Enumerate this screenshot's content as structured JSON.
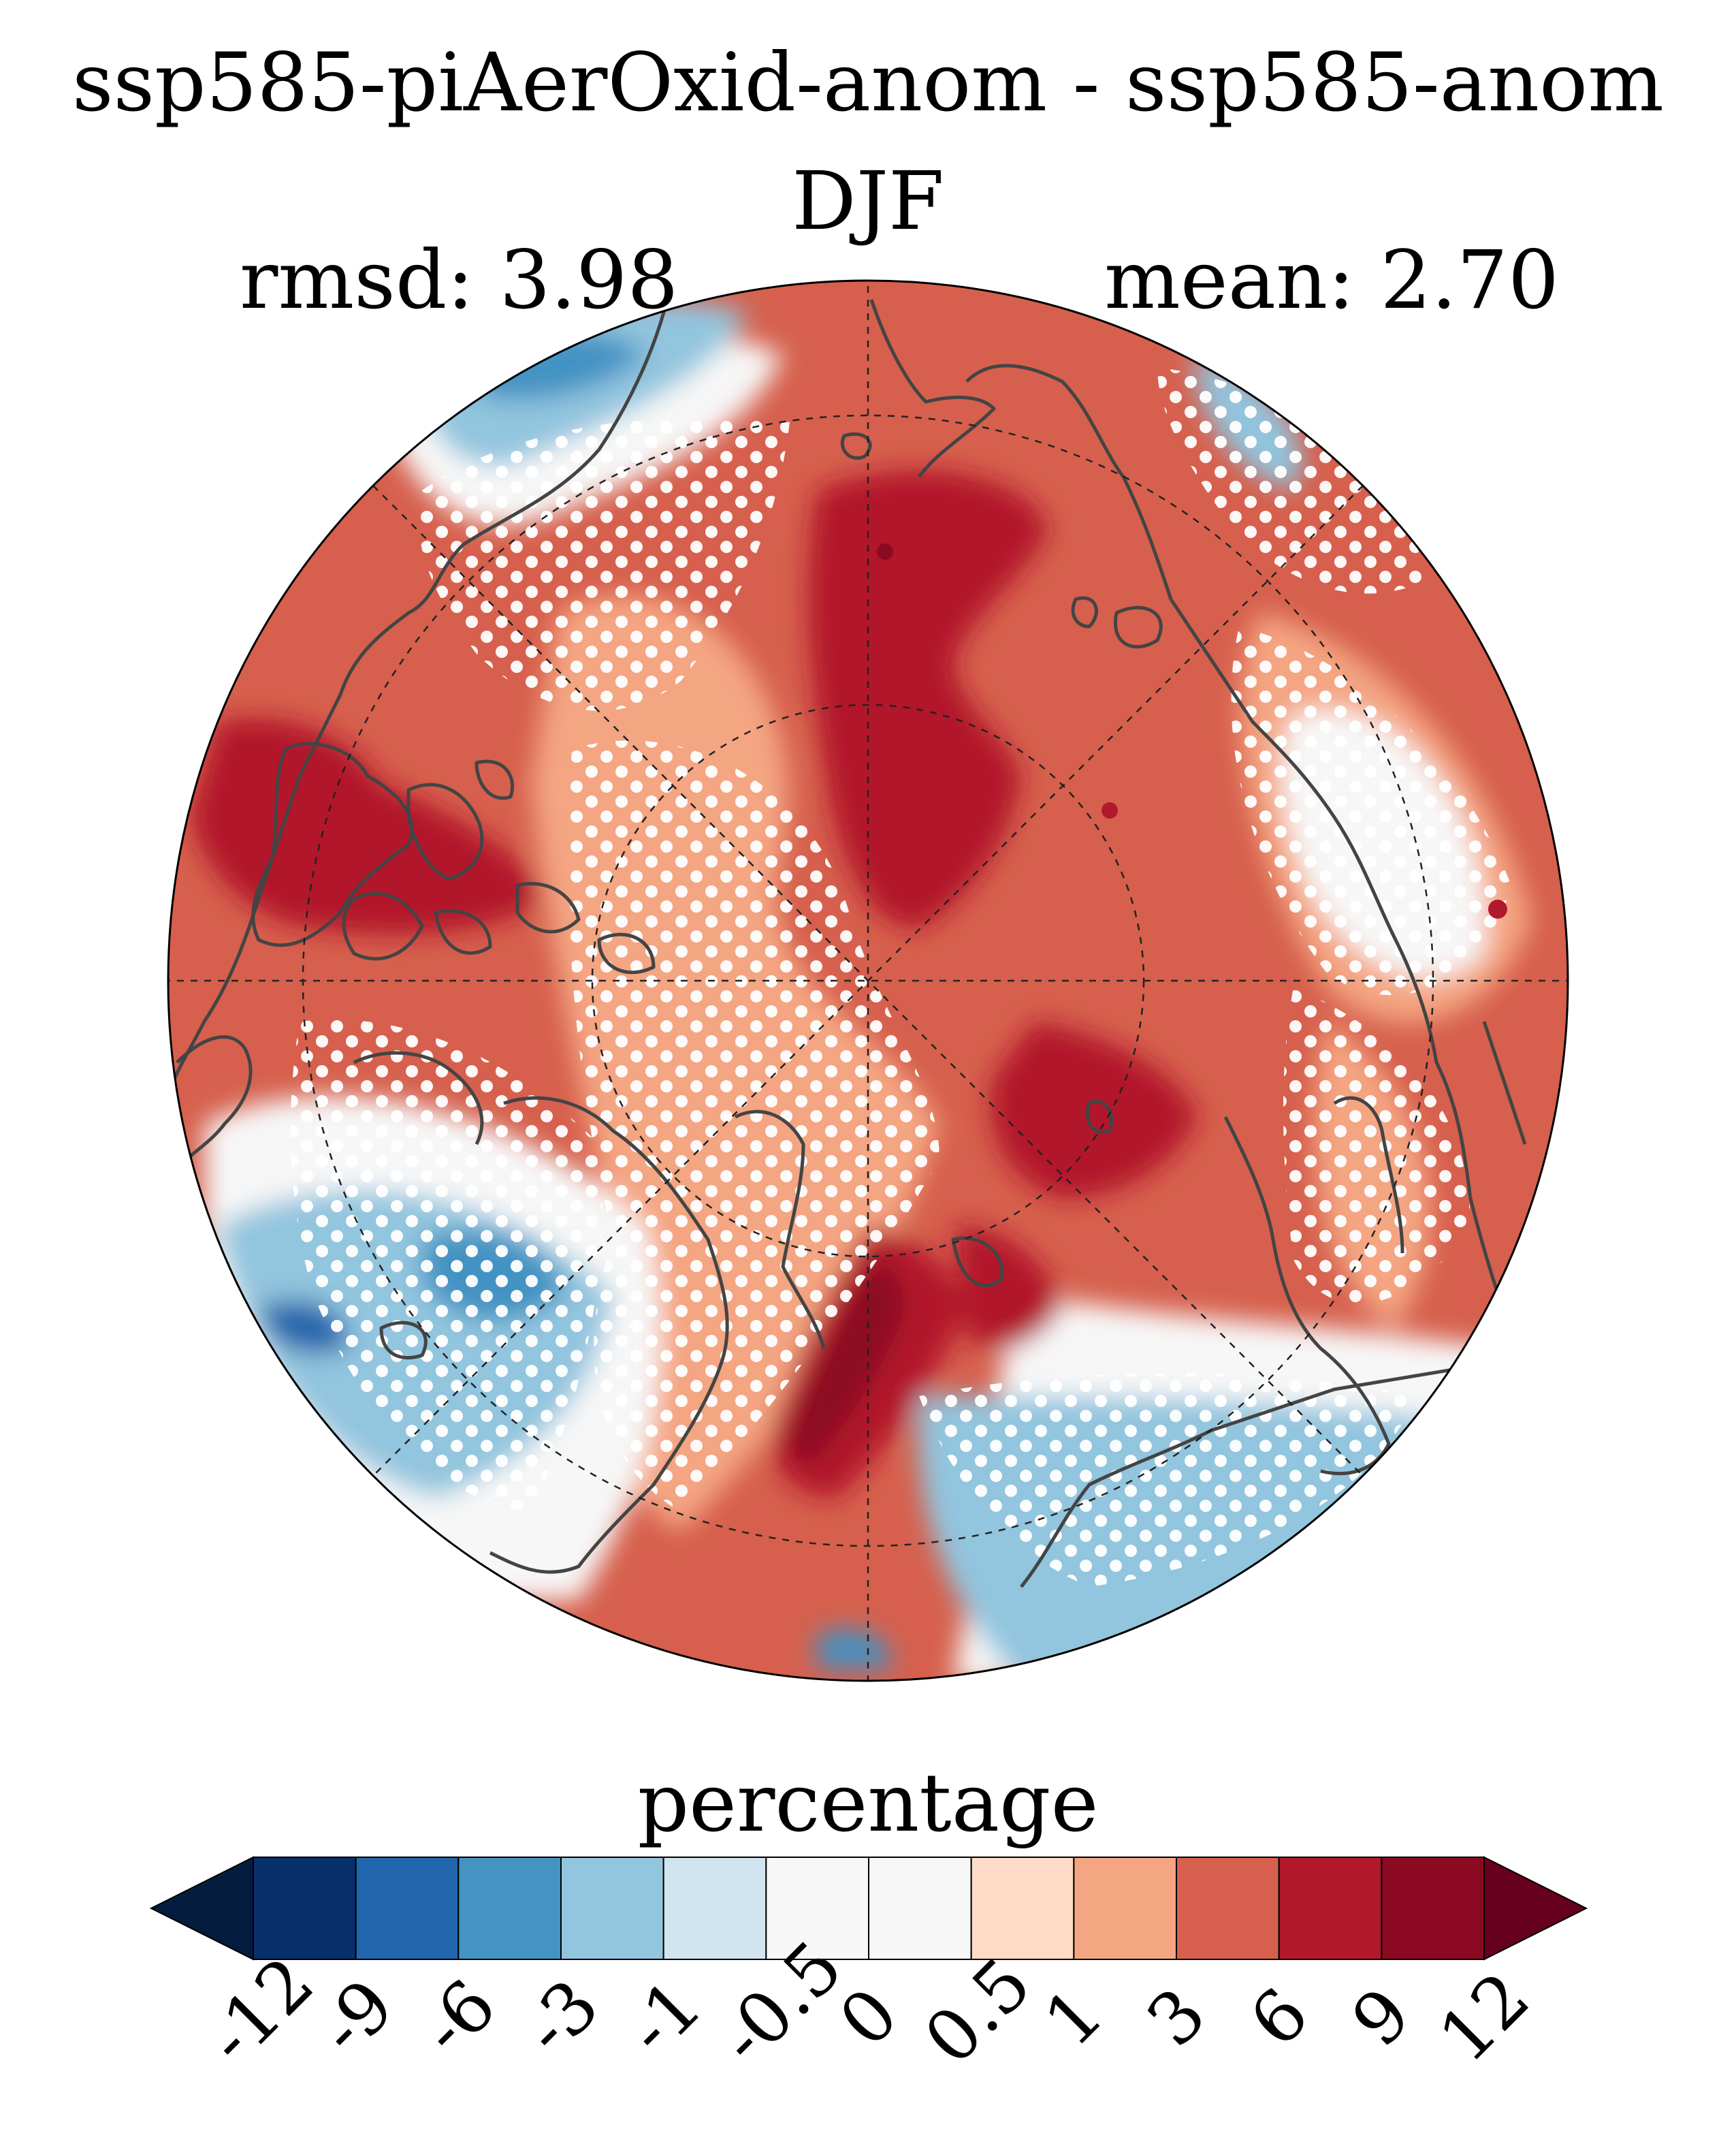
{
  "figure": {
    "title": "ssp585-piAerOxid-anom - ssp585-anom",
    "subtitle": "DJF",
    "rmsd_label": "rmsd: 3.98",
    "mean_label": "mean: 2.70"
  },
  "colorbar": {
    "label": "percentage",
    "ticks": [
      "-12",
      "-9",
      "-6",
      "-3",
      "-1",
      "-0.5",
      "0",
      "0.5",
      "1",
      "3",
      "6",
      "9",
      "12"
    ],
    "colors": [
      "#08306b",
      "#2166ac",
      "#4393c3",
      "#92c5de",
      "#d1e5f0",
      "#f7f7f7",
      "#f7f7f7",
      "#fddbc7",
      "#f4a582",
      "#d6604d",
      "#b2182b",
      "#8b0a22"
    ],
    "under_color": "#041c3e",
    "over_color": "#67001f",
    "extend": "both"
  },
  "map": {
    "projection": "north-polar-stereographic",
    "background_color": "#d6604d",
    "coastline_color": "#444444",
    "stippling": "white dots mark significant regions"
  }
}
